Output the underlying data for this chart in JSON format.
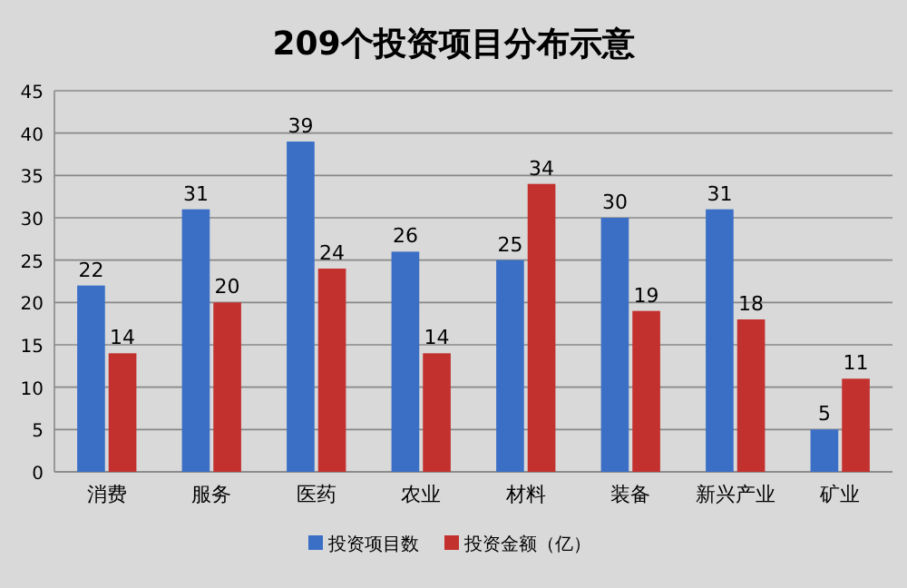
{
  "chart_data": {
    "type": "bar",
    "title": "209个投资项目分布示意",
    "categories": [
      "消费",
      "服务",
      "医药",
      "农业",
      "材料",
      "装备",
      "新兴产业",
      "矿业"
    ],
    "series": [
      {
        "name": "投资项目数",
        "color": "#3b6fc6",
        "values": [
          22,
          31,
          39,
          26,
          25,
          30,
          31,
          5
        ]
      },
      {
        "name": "投资金额（亿）",
        "color": "#c3312f",
        "values": [
          14,
          20,
          24,
          14,
          34,
          19,
          18,
          11
        ]
      }
    ],
    "ylim": [
      0,
      45
    ],
    "yticks": [
      0,
      5,
      10,
      15,
      20,
      25,
      30,
      35,
      40,
      45
    ],
    "grid": "y",
    "legend": "bottom",
    "data_labels": true
  }
}
